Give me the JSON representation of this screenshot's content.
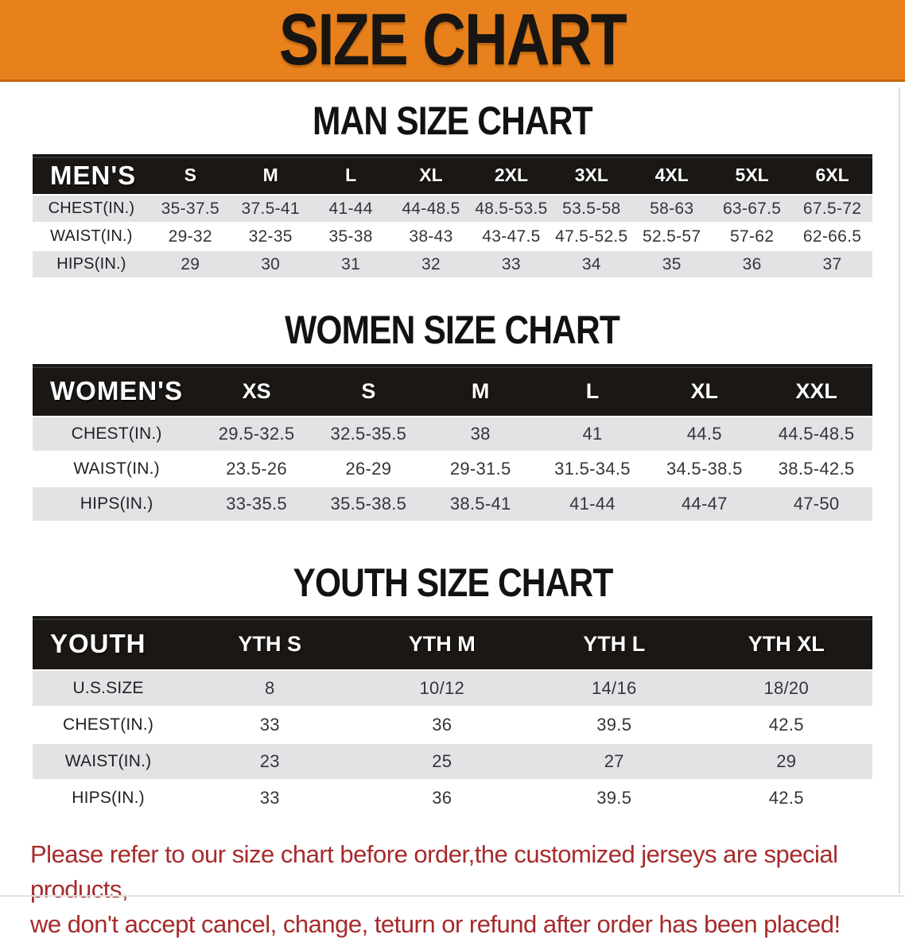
{
  "banner": {
    "title": "SIZE CHART"
  },
  "colors": {
    "banner_bg": "#E8811C",
    "banner_border": "#C4650D",
    "table_header_bg": "#1A1714",
    "row_gray": "#E3E3E5",
    "disclaimer_red": "#A62B2B"
  },
  "sections": [
    {
      "heading": "MAN SIZE CHART",
      "group_label": "MEN'S",
      "sizes": [
        "S",
        "M",
        "L",
        "XL",
        "2XL",
        "3XL",
        "4XL",
        "5XL",
        "6XL"
      ],
      "rows": [
        {
          "label": "CHEST(IN.)",
          "values": [
            "35-37.5",
            "37.5-41",
            "41-44",
            "44-48.5",
            "48.5-53.5",
            "53.5-58",
            "58-63",
            "63-67.5",
            "67.5-72"
          ]
        },
        {
          "label": "WAIST(IN.)",
          "values": [
            "29-32",
            "32-35",
            "35-38",
            "38-43",
            "43-47.5",
            "47.5-52.5",
            "52.5-57",
            "57-62",
            "62-66.5"
          ]
        },
        {
          "label": "HIPS(IN.)",
          "values": [
            "29",
            "30",
            "31",
            "32",
            "33",
            "34",
            "35",
            "36",
            "37"
          ]
        }
      ]
    },
    {
      "heading": "WOMEN SIZE CHART",
      "group_label": "WOMEN'S",
      "sizes": [
        "XS",
        "S",
        "M",
        "L",
        "XL",
        "XXL"
      ],
      "rows": [
        {
          "label": "CHEST(IN.)",
          "values": [
            "29.5-32.5",
            "32.5-35.5",
            "38",
            "41",
            "44.5",
            "44.5-48.5"
          ]
        },
        {
          "label": "WAIST(IN.)",
          "values": [
            "23.5-26",
            "26-29",
            "29-31.5",
            "31.5-34.5",
            "34.5-38.5",
            "38.5-42.5"
          ]
        },
        {
          "label": "HIPS(IN.)",
          "values": [
            "33-35.5",
            "35.5-38.5",
            "38.5-41",
            "41-44",
            "44-47",
            "47-50"
          ]
        }
      ]
    },
    {
      "heading": "YOUTH SIZE CHART",
      "group_label": "YOUTH",
      "sizes": [
        "YTH S",
        "YTH M",
        "YTH L",
        "YTH XL"
      ],
      "rows": [
        {
          "label": "U.S.SIZE",
          "values": [
            "8",
            "10/12",
            "14/16",
            "18/20"
          ]
        },
        {
          "label": "CHEST(IN.)",
          "values": [
            "33",
            "36",
            "39.5",
            "42.5"
          ]
        },
        {
          "label": "WAIST(IN.)",
          "values": [
            "23",
            "25",
            "27",
            "29"
          ]
        },
        {
          "label": "HIPS(IN.)",
          "values": [
            "33",
            "36",
            "39.5",
            "42.5"
          ]
        }
      ]
    }
  ],
  "disclaimer": {
    "line1": "Please refer to our size chart before order,the customized jerseys are special products,",
    "line2": "we don't accept cancel, change, teturn or refund after order has been placed!"
  }
}
